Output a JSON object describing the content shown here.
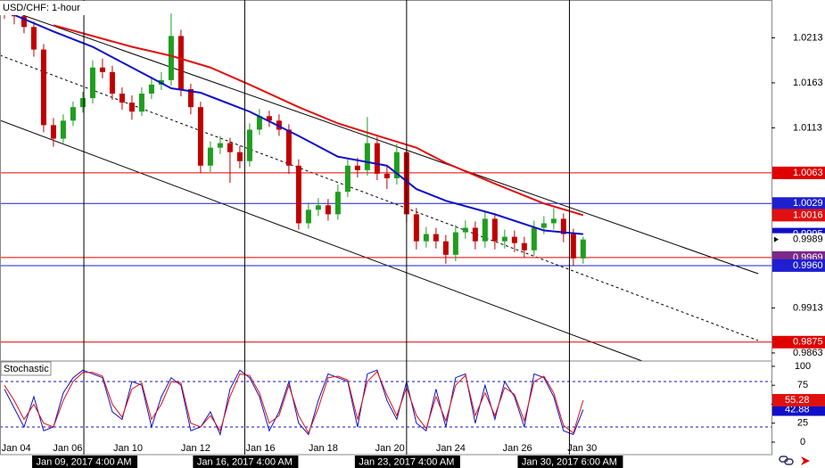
{
  "chart_data": {
    "type": "candlestick",
    "title": "USD/CHF: 1-hour",
    "up_color": "#1f9e1f",
    "down_color": "#c00000",
    "open": [
      1.0245,
      1.024,
      1.0237,
      1.0225,
      1.02,
      1.0116,
      1.0101,
      1.0121,
      1.0136,
      1.0146,
      1.018,
      1.0175,
      1.0151,
      1.0141,
      1.0131,
      1.0151,
      1.0161,
      1.0166,
      1.0215,
      1.0156,
      1.0136,
      1.0071,
      1.0091,
      1.0096,
      1.0086,
      1.0076,
      1.0111,
      1.0126,
      1.0121,
      1.0111,
      1.0071,
      1.0007,
      1.0022,
      1.0027,
      1.0017,
      1.0042,
      1.0071,
      1.0066,
      1.0096,
      1.0062,
      1.0057,
      1.0086,
      1.0017,
      0.9987,
      0.9995,
      0.9987,
      0.9972,
      0.9997,
      1.0002,
      0.9987,
      1.0012,
      0.9987,
      0.9992,
      0.9985,
      0.9977,
      1.0002,
      1.0007,
      1.0012,
      0.9995,
      0.9968
    ],
    "high": [
      1.0252,
      1.0248,
      1.0243,
      1.0231,
      1.0206,
      1.0124,
      1.0128,
      1.0142,
      1.0153,
      1.0188,
      1.019,
      1.0182,
      1.0158,
      1.0149,
      1.0158,
      1.017,
      1.0175,
      1.024,
      1.0222,
      1.0162,
      1.0142,
      1.0098,
      1.0104,
      1.0102,
      1.0093,
      1.0118,
      1.0134,
      1.0132,
      1.0128,
      1.0117,
      1.0078,
      1.003,
      1.0035,
      1.0034,
      1.005,
      1.0078,
      1.008,
      1.0125,
      1.0103,
      1.007,
      1.0095,
      1.0092,
      1.0024,
      1.0003,
      1.0002,
      0.9994,
      1.0005,
      1.001,
      1.0009,
      1.002,
      1.0018,
      1.0,
      0.9999,
      0.9992,
      1.001,
      1.0015,
      1.0024,
      1.0018,
      1.0001,
      0.9992
    ],
    "low": [
      1.0234,
      1.0228,
      1.0218,
      1.0192,
      1.0108,
      1.0092,
      1.0096,
      1.0115,
      1.013,
      1.014,
      1.0168,
      1.0144,
      1.0133,
      1.0122,
      1.0126,
      1.0145,
      1.0155,
      1.016,
      1.0148,
      1.0128,
      1.0063,
      1.0064,
      1.0084,
      1.0052,
      1.0068,
      1.007,
      1.0105,
      1.0114,
      1.0104,
      1.0062,
      1.0,
      1.0001,
      1.0015,
      1.001,
      1.0011,
      1.0036,
      1.0058,
      1.006,
      1.0055,
      1.0045,
      1.005,
      1.0008,
      0.9978,
      0.998,
      0.9979,
      0.9962,
      0.9965,
      0.999,
      0.9978,
      0.998,
      0.9978,
      0.9979,
      0.9975,
      0.9969,
      0.9971,
      0.9995,
      1.0,
      0.9986,
      0.996,
      0.9962
    ],
    "close": [
      1.024,
      1.0237,
      1.0225,
      1.02,
      1.0116,
      1.0101,
      1.0121,
      1.0136,
      1.0146,
      1.018,
      1.0175,
      1.0151,
      1.0141,
      1.0131,
      1.0151,
      1.0161,
      1.0166,
      1.0215,
      1.0156,
      1.0136,
      1.0071,
      1.0091,
      1.0096,
      1.0086,
      1.0076,
      1.0111,
      1.0126,
      1.0121,
      1.0111,
      1.0071,
      1.0007,
      1.0022,
      1.0027,
      1.0017,
      1.0042,
      1.0071,
      1.0066,
      1.0096,
      1.0062,
      1.0057,
      1.0086,
      1.0017,
      0.9987,
      0.9995,
      0.9987,
      0.9972,
      0.9997,
      1.0002,
      0.9987,
      1.0012,
      0.9987,
      0.9992,
      0.9985,
      0.9977,
      1.0002,
      1.0007,
      1.0012,
      0.9995,
      0.9968,
      0.9989
    ],
    "xlim": [
      -0.45,
      78.2
    ],
    "ylim": [
      0.9854,
      1.0255
    ],
    "yticks": [
      1.0213,
      1.0163,
      1.0113,
      0.9913,
      0.9863
    ],
    "xticks": [
      {
        "value": 1.2,
        "label": "Jan 04"
      },
      {
        "value": 6.45,
        "label": "Jan 06"
      },
      {
        "value": 12.6,
        "label": "Jan 10"
      },
      {
        "value": 19.5,
        "label": "Jan 12"
      },
      {
        "value": 26.1,
        "label": "Jan 16"
      },
      {
        "value": 32.5,
        "label": "Jan 18"
      },
      {
        "value": 39.3,
        "label": "Jan 20"
      },
      {
        "value": 45.5,
        "label": "Jan 24"
      },
      {
        "value": 52.3,
        "label": "Jan 26"
      },
      {
        "value": 58.9,
        "label": "Jan 30"
      }
    ],
    "period_labels": [
      {
        "value": 8.1,
        "label": "Jan 09, 2017 4:00 AM"
      },
      {
        "value": 24.5,
        "label": "Jan 16, 2017 4:00 AM"
      },
      {
        "value": 41,
        "label": "Jan 23, 2017 4:00 AM"
      },
      {
        "value": 57.6,
        "label": "Jan 30, 2017 6:00 AM"
      }
    ],
    "price_tags": [
      {
        "value": 1.0063,
        "color": "#e00000"
      },
      {
        "value": 1.0029,
        "color": "#1f1fd0"
      },
      {
        "value": 0.9969,
        "color": "#e00000",
        "tag_color": "#7a2a8a"
      },
      {
        "value": 0.996,
        "label": "0.9960",
        "color": "#1f1fd0"
      },
      {
        "value": 0.9875,
        "color": "#e00000"
      }
    ],
    "overlays": [
      {
        "color": "#1010c8",
        "x": [
          0,
          5,
          9,
          13,
          17,
          20,
          25,
          30,
          34,
          39,
          42,
          45,
          50,
          55,
          59
        ],
        "values": [
          1.0243,
          1.022,
          1.0203,
          1.018,
          1.0157,
          1.0152,
          1.0131,
          1.0104,
          1.0081,
          1.0071,
          1.0045,
          1.0032,
          1.0017,
          0.9999,
          0.9995
        ]
      },
      {
        "color": "#e01010",
        "x": [
          5,
          9,
          13,
          17,
          21,
          25,
          30,
          34,
          39,
          42,
          45,
          50,
          55,
          59
        ],
        "values": [
          1.0227,
          1.0215,
          1.0203,
          1.0193,
          1.018,
          1.0161,
          1.0136,
          1.0118,
          1.0101,
          1.0091,
          1.0074,
          1.0051,
          1.0029,
          1.0016
        ]
      }
    ],
    "indicator": {
      "title": "Stochastic",
      "ylim": [
        -16.5,
        107
      ],
      "yticks": [
        0,
        25,
        50,
        75,
        100
      ],
      "levels": [
        80,
        20
      ],
      "level_color": "#1010c8",
      "series": [
        {
          "color": "#1010c8",
          "values": [
            70,
            45,
            20,
            60,
            15,
            20,
            65,
            85,
            95,
            90,
            85,
            40,
            30,
            80,
            75,
            20,
            60,
            85,
            75,
            15,
            20,
            40,
            10,
            70,
            95,
            85,
            60,
            15,
            40,
            80,
            25,
            10,
            55,
            90,
            85,
            80,
            20,
            90,
            95,
            55,
            30,
            80,
            25,
            15,
            70,
            20,
            85,
            90,
            25,
            75,
            30,
            80,
            60,
            20,
            90,
            85,
            60,
            15,
            10,
            42.88
          ]
        },
        {
          "color": "#e01010",
          "values": [
            75,
            55,
            30,
            50,
            25,
            20,
            55,
            80,
            92,
            92,
            87,
            50,
            33,
            70,
            78,
            30,
            50,
            80,
            78,
            25,
            20,
            35,
            15,
            60,
            90,
            88,
            65,
            25,
            35,
            75,
            35,
            12,
            45,
            85,
            87,
            82,
            30,
            80,
            93,
            62,
            35,
            72,
            35,
            18,
            60,
            28,
            75,
            88,
            35,
            65,
            35,
            72,
            63,
            28,
            80,
            87,
            65,
            22,
            12,
            55.28
          ]
        }
      ]
    }
  }
}
